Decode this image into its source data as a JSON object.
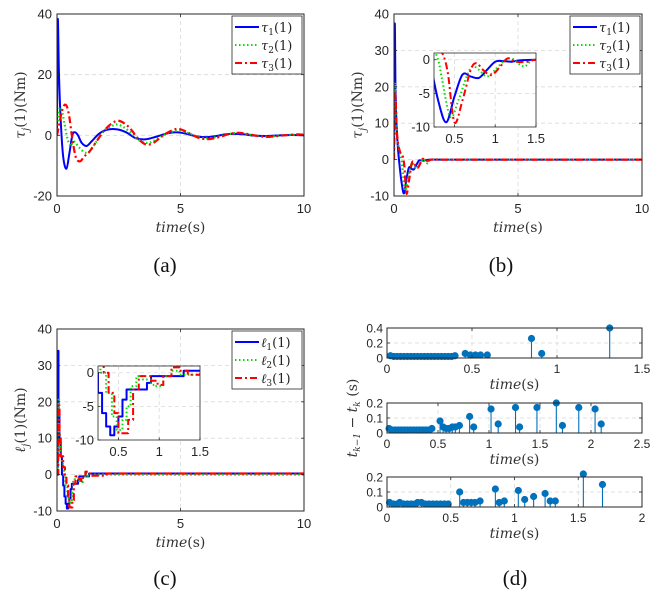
{
  "chart_data": [
    {
      "id": "a",
      "type": "line",
      "caption": "(a)",
      "xlabel": "time(s)",
      "ylabel": "τj(1)(Nm)",
      "xlim": [
        0,
        10
      ],
      "ylim": [
        -20,
        40
      ],
      "xticks": [
        0,
        5,
        10
      ],
      "yticks": [
        -20,
        0,
        20,
        40
      ],
      "grid": true,
      "legend_position": "top-right",
      "series": [
        {
          "name": "τ1(1)",
          "color": "#0000ff",
          "style": "solid",
          "x": [
            0,
            0.03,
            0.08,
            0.15,
            0.25,
            0.38,
            0.5,
            0.62,
            0.72,
            0.85,
            1.0,
            1.2,
            1.4,
            1.7,
            2.0,
            2.4,
            2.8,
            3.2,
            3.6,
            4.0,
            4.4,
            4.8,
            5.2,
            5.6,
            6.0,
            6.4,
            6.8,
            7.2,
            7.6,
            8.0,
            8.5,
            9.0,
            9.5,
            10
          ],
          "y": [
            2,
            38,
            20,
            5,
            -7,
            -11,
            -6,
            0,
            1,
            0,
            -2.5,
            -3.5,
            -2,
            0.5,
            1.8,
            2,
            1,
            -1,
            -1.3,
            -0.5,
            0.5,
            1,
            0.6,
            -0.3,
            -0.6,
            -0.3,
            0.3,
            0.5,
            0.3,
            -0.1,
            -0.2,
            0,
            0.1,
            0
          ]
        },
        {
          "name": "τ2(1)",
          "color": "#00dd00",
          "style": "dotted",
          "x": [
            0,
            0.05,
            0.12,
            0.2,
            0.3,
            0.42,
            0.55,
            0.65,
            0.75,
            0.9,
            1.1,
            1.3,
            1.6,
            1.9,
            2.2,
            2.5,
            2.9,
            3.3,
            3.7,
            4.1,
            4.5,
            4.9,
            5.3,
            5.7,
            6.1,
            6.5,
            6.9,
            7.3,
            7.7,
            8.1,
            8.6,
            9.1,
            9.6,
            10
          ],
          "y": [
            2,
            6,
            9,
            8,
            4,
            -1,
            -3.5,
            -2,
            -2.5,
            -4,
            -5.5,
            -5.5,
            -2,
            1.5,
            3,
            3.5,
            1.5,
            -1.5,
            -2.5,
            -1,
            0.8,
            1.5,
            0.8,
            -0.5,
            -1,
            -0.5,
            0.3,
            0.8,
            0.4,
            -0.2,
            -0.4,
            0,
            0.2,
            0.1
          ]
        },
        {
          "name": "τ3(1)",
          "color": "#ff0000",
          "style": "dashdot",
          "x": [
            0,
            0.1,
            0.2,
            0.3,
            0.4,
            0.5,
            0.6,
            0.7,
            0.8,
            0.95,
            1.1,
            1.3,
            1.6,
            1.9,
            2.2,
            2.5,
            2.9,
            3.3,
            3.6,
            3.9,
            4.3,
            4.7,
            5.0,
            5.4,
            5.8,
            6.2,
            6.6,
            7.0,
            7.4,
            7.8,
            8.2,
            8.6,
            9.2,
            9.7,
            10
          ],
          "y": [
            0,
            4,
            8,
            10,
            9.5,
            6,
            0,
            -5,
            -8,
            -8.5,
            -7,
            -5.5,
            -2,
            1.5,
            3.8,
            4.8,
            2.8,
            -1.2,
            -3,
            -2.5,
            0,
            1.8,
            2,
            0.5,
            -1,
            -1.2,
            -0.5,
            0.5,
            0.8,
            0.3,
            -0.3,
            -0.5,
            0,
            0.3,
            0.2
          ]
        }
      ]
    },
    {
      "id": "b",
      "type": "line",
      "caption": "(b)",
      "xlabel": "time(s)",
      "ylabel": "τj(1)(Nm)",
      "xlim": [
        0,
        10
      ],
      "ylim": [
        -10,
        40
      ],
      "xticks": [
        0,
        5,
        10
      ],
      "yticks": [
        -10,
        0,
        10,
        20,
        30,
        40
      ],
      "grid": true,
      "legend_position": "top-right",
      "series": [
        {
          "name": "τ1(1)",
          "color": "#0000ff",
          "style": "solid",
          "x": [
            0,
            0.03,
            0.06,
            0.1,
            0.15,
            0.2,
            0.3,
            0.4,
            0.5,
            0.6,
            0.7,
            0.8,
            0.9,
            1.0,
            1.1,
            1.2,
            1.3,
            1.5,
            2.0,
            3,
            5,
            10
          ],
          "y": [
            2,
            37,
            20,
            10,
            4,
            0,
            -6,
            -9.3,
            -5.5,
            -2.2,
            -2.5,
            -2.7,
            -1.5,
            -0.3,
            -0.2,
            -0.3,
            -0.1,
            0,
            0,
            0,
            0,
            0
          ]
        },
        {
          "name": "τ2(1)",
          "color": "#00dd00",
          "style": "dotted",
          "x": [
            0,
            0.04,
            0.08,
            0.12,
            0.2,
            0.3,
            0.35,
            0.45,
            0.55,
            0.65,
            0.72,
            0.8,
            0.9,
            1.0,
            1.1,
            1.2,
            1.35,
            1.5,
            2.0,
            3,
            5,
            10
          ],
          "y": [
            2,
            21,
            10,
            6,
            3,
            0,
            -3,
            -8.5,
            -6,
            -2.5,
            -1,
            -1.5,
            -2.5,
            -1.5,
            -0.3,
            0.2,
            -1,
            0,
            0,
            0,
            0,
            0
          ]
        },
        {
          "name": "τ3(1)",
          "color": "#ff0000",
          "style": "dashdot",
          "x": [
            0,
            0.05,
            0.1,
            0.15,
            0.25,
            0.35,
            0.42,
            0.5,
            0.6,
            0.7,
            0.77,
            0.85,
            0.95,
            1.05,
            1.15,
            1.25,
            1.4,
            1.5,
            2.0,
            3,
            5,
            10
          ],
          "y": [
            0,
            18,
            10,
            5,
            2,
            1,
            -2,
            -9.3,
            -6,
            -1.5,
            -0.5,
            -1.5,
            -2.3,
            -1.2,
            0.2,
            -0.3,
            -0.3,
            0,
            0,
            0,
            0,
            0
          ]
        }
      ],
      "inset": {
        "xlim": [
          0.25,
          1.5
        ],
        "ylim": [
          -10,
          1
        ],
        "xticks": [
          0.5,
          1,
          1.5
        ],
        "yticks": [
          -10,
          -5,
          0
        ]
      }
    },
    {
      "id": "c",
      "type": "line",
      "caption": "(c)",
      "xlabel": "time(s)",
      "ylabel": "ℓj(1)(Nm)",
      "xlim": [
        0,
        10
      ],
      "ylim": [
        -10,
        40
      ],
      "xticks": [
        0,
        5,
        10
      ],
      "yticks": [
        -10,
        0,
        10,
        20,
        30,
        40
      ],
      "grid": true,
      "legend_position": "top-right",
      "series": [
        {
          "name": "ℓ1(1)",
          "color": "#0000ff",
          "style": "solid",
          "step": true,
          "x": [
            0,
            0.03,
            0.06,
            0.1,
            0.15,
            0.2,
            0.25,
            0.3,
            0.35,
            0.4,
            0.45,
            0.5,
            0.55,
            0.6,
            0.7,
            0.8,
            0.85,
            0.9,
            1.0,
            1.1,
            1.2,
            1.3,
            1.5,
            2.0,
            5,
            10
          ],
          "y": [
            2,
            34,
            17,
            9,
            5,
            0,
            -3,
            -6,
            -8,
            -9.3,
            -8,
            -6.5,
            -4,
            -2.5,
            -2.5,
            -2.5,
            -1.5,
            -0.5,
            -0.5,
            -0.5,
            -0.5,
            0.3,
            0.3,
            0.3,
            0.3,
            0.3
          ]
        },
        {
          "name": "ℓ2(1)",
          "color": "#00dd00",
          "style": "dotted",
          "step": true,
          "x": [
            0,
            0.04,
            0.08,
            0.12,
            0.2,
            0.28,
            0.35,
            0.42,
            0.48,
            0.55,
            0.6,
            0.65,
            0.72,
            0.8,
            0.9,
            0.95,
            1.05,
            1.15,
            1.25,
            1.35,
            1.5,
            2.0,
            5,
            10
          ],
          "y": [
            2,
            21,
            11,
            5,
            3,
            0,
            -3,
            -6.5,
            -8.5,
            -7,
            -5,
            -2,
            -0.5,
            -1,
            -1.8,
            -2,
            -0.5,
            0.3,
            -0.3,
            -0.3,
            0,
            0,
            0,
            0
          ]
        },
        {
          "name": "ℓ3(1)",
          "color": "#ff0000",
          "style": "dashdot",
          "step": true,
          "x": [
            0,
            0.05,
            0.1,
            0.15,
            0.25,
            0.32,
            0.38,
            0.45,
            0.5,
            0.58,
            0.62,
            0.68,
            0.75,
            0.82,
            0.9,
            0.98,
            1.05,
            1.15,
            1.25,
            1.35,
            1.5,
            2.0,
            5,
            10
          ],
          "y": [
            0,
            19,
            10,
            5,
            2,
            0,
            -3,
            -6,
            -9,
            -9,
            -7,
            -2.5,
            -0.5,
            -0.5,
            -1.2,
            -1.8,
            -0.5,
            0.8,
            0.3,
            -0.3,
            -0.3,
            0.3,
            0.3,
            0.3
          ]
        }
      ],
      "inset": {
        "xlim": [
          0.25,
          1.5
        ],
        "ylim": [
          -10,
          1
        ],
        "xticks": [
          0.5,
          1,
          1.5
        ],
        "yticks": [
          -10,
          -5,
          0
        ]
      }
    },
    {
      "id": "d",
      "type": "stem",
      "caption": "(d)",
      "ylabel": "t_{k-1} - t_k (s)",
      "color": "#0072bd",
      "subplots": [
        {
          "xlabel": "time(s)",
          "xlim": [
            0,
            1.5
          ],
          "ylim": [
            0,
            0.4
          ],
          "xticks": [
            0,
            0.5,
            1,
            1.5
          ],
          "yticks": [
            0,
            0.2,
            0.4
          ],
          "grid": true,
          "x": [
            0.02,
            0.04,
            0.06,
            0.08,
            0.1,
            0.12,
            0.14,
            0.16,
            0.18,
            0.2,
            0.22,
            0.24,
            0.26,
            0.28,
            0.3,
            0.32,
            0.34,
            0.36,
            0.38,
            0.4,
            0.46,
            0.49,
            0.52,
            0.55,
            0.59,
            0.85,
            0.91,
            1.31
          ],
          "y": [
            0.03,
            0.02,
            0.02,
            0.02,
            0.02,
            0.02,
            0.02,
            0.02,
            0.02,
            0.02,
            0.02,
            0.02,
            0.02,
            0.02,
            0.02,
            0.02,
            0.02,
            0.02,
            0.02,
            0.03,
            0.06,
            0.04,
            0.04,
            0.04,
            0.04,
            0.26,
            0.06,
            0.4
          ]
        },
        {
          "xlabel": "time(s)",
          "xlim": [
            0,
            2.5
          ],
          "ylim": [
            0,
            0.2
          ],
          "xticks": [
            0,
            0.5,
            1,
            1.5,
            2,
            2.5
          ],
          "yticks": [
            0,
            0.1,
            0.2
          ],
          "grid": true,
          "x": [
            0.02,
            0.05,
            0.08,
            0.11,
            0.14,
            0.17,
            0.2,
            0.23,
            0.26,
            0.29,
            0.32,
            0.35,
            0.38,
            0.41,
            0.44,
            0.52,
            0.55,
            0.58,
            0.61,
            0.64,
            0.67,
            0.71,
            0.81,
            0.85,
            1.02,
            1.09,
            1.26,
            1.3,
            1.47,
            1.66,
            1.72,
            1.88,
            2.04,
            2.1
          ],
          "y": [
            0.03,
            0.02,
            0.02,
            0.02,
            0.02,
            0.02,
            0.02,
            0.02,
            0.02,
            0.02,
            0.02,
            0.02,
            0.02,
            0.02,
            0.03,
            0.08,
            0.04,
            0.03,
            0.03,
            0.04,
            0.04,
            0.05,
            0.11,
            0.04,
            0.16,
            0.06,
            0.17,
            0.04,
            0.17,
            0.2,
            0.05,
            0.17,
            0.16,
            0.06
          ]
        },
        {
          "xlabel": "time(s)",
          "xlim": [
            0,
            2
          ],
          "ylim": [
            0,
            0.2
          ],
          "xticks": [
            0,
            0.5,
            1,
            1.5,
            2
          ],
          "yticks": [
            0,
            0.1,
            0.2
          ],
          "grid": true,
          "x": [
            0.02,
            0.05,
            0.08,
            0.1,
            0.13,
            0.16,
            0.19,
            0.22,
            0.24,
            0.27,
            0.3,
            0.33,
            0.36,
            0.39,
            0.42,
            0.45,
            0.48,
            0.57,
            0.6,
            0.63,
            0.66,
            0.69,
            0.73,
            0.85,
            0.88,
            0.92,
            1.03,
            1.08,
            1.15,
            1.24,
            1.28,
            1.32,
            1.54,
            1.69
          ],
          "y": [
            0.03,
            0.02,
            0.02,
            0.03,
            0.02,
            0.02,
            0.02,
            0.02,
            0.03,
            0.03,
            0.02,
            0.02,
            0.02,
            0.02,
            0.02,
            0.02,
            0.02,
            0.1,
            0.03,
            0.03,
            0.03,
            0.03,
            0.04,
            0.12,
            0.03,
            0.04,
            0.11,
            0.05,
            0.07,
            0.09,
            0.04,
            0.04,
            0.22,
            0.15
          ]
        }
      ]
    }
  ]
}
